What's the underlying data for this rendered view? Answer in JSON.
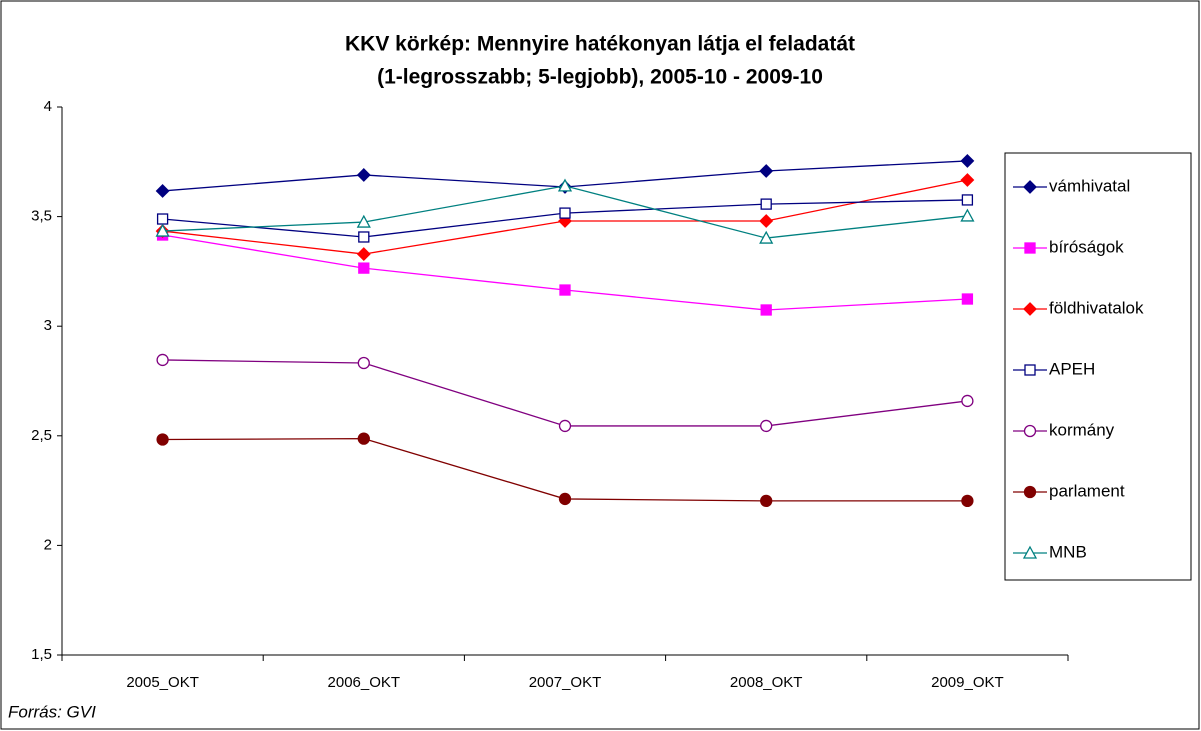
{
  "chart_data": {
    "type": "line",
    "title": "KKV körkép: Mennyire hatékonyan látja el feladatát",
    "subtitle": "(1-legrosszabb; 5-legjobb), 2005-10 - 2009-10",
    "source": "Forrás: GVI",
    "categories": [
      "2005_OKT",
      "2006_OKT",
      "2007_OKT",
      "2008_OKT",
      "2009_OKT"
    ],
    "ylim": [
      1.5,
      4
    ],
    "yticks": [
      {
        "value": 1.5,
        "label": "1,5"
      },
      2,
      {
        "value": 2.5,
        "label": "2,5"
      },
      3,
      {
        "value": 3.5,
        "label": "3,5"
      },
      4
    ],
    "legend": "right",
    "series": [
      {
        "name": "vámhivatal",
        "color": "#000080",
        "marker": "diamond",
        "filled": true,
        "values": [
          3.617,
          3.69,
          3.635,
          3.708,
          3.754
        ]
      },
      {
        "name": "bíróságok",
        "color": "#ff00ff",
        "marker": "square",
        "filled": true,
        "values": [
          3.416,
          3.265,
          3.165,
          3.074,
          3.124
        ]
      },
      {
        "name": "földhivatalok",
        "color": "#ff0000",
        "marker": "diamond",
        "filled": true,
        "values": [
          3.434,
          3.329,
          3.48,
          3.48,
          3.667
        ]
      },
      {
        "name": "APEH",
        "color": "#000080",
        "marker": "square",
        "filled": false,
        "values": [
          3.489,
          3.407,
          3.516,
          3.557,
          3.576
        ]
      },
      {
        "name": "kormány",
        "color": "#800080",
        "marker": "circle",
        "filled": false,
        "values": [
          2.846,
          2.832,
          2.545,
          2.545,
          2.659
        ]
      },
      {
        "name": "parlament",
        "color": "#800000",
        "marker": "circle",
        "filled": true,
        "values": [
          2.483,
          2.487,
          2.212,
          2.203,
          2.203
        ]
      },
      {
        "name": "MNB",
        "color": "#008080",
        "marker": "triangle",
        "filled": false,
        "values": [
          3.434,
          3.475,
          3.64,
          3.402,
          3.503
        ]
      }
    ]
  }
}
